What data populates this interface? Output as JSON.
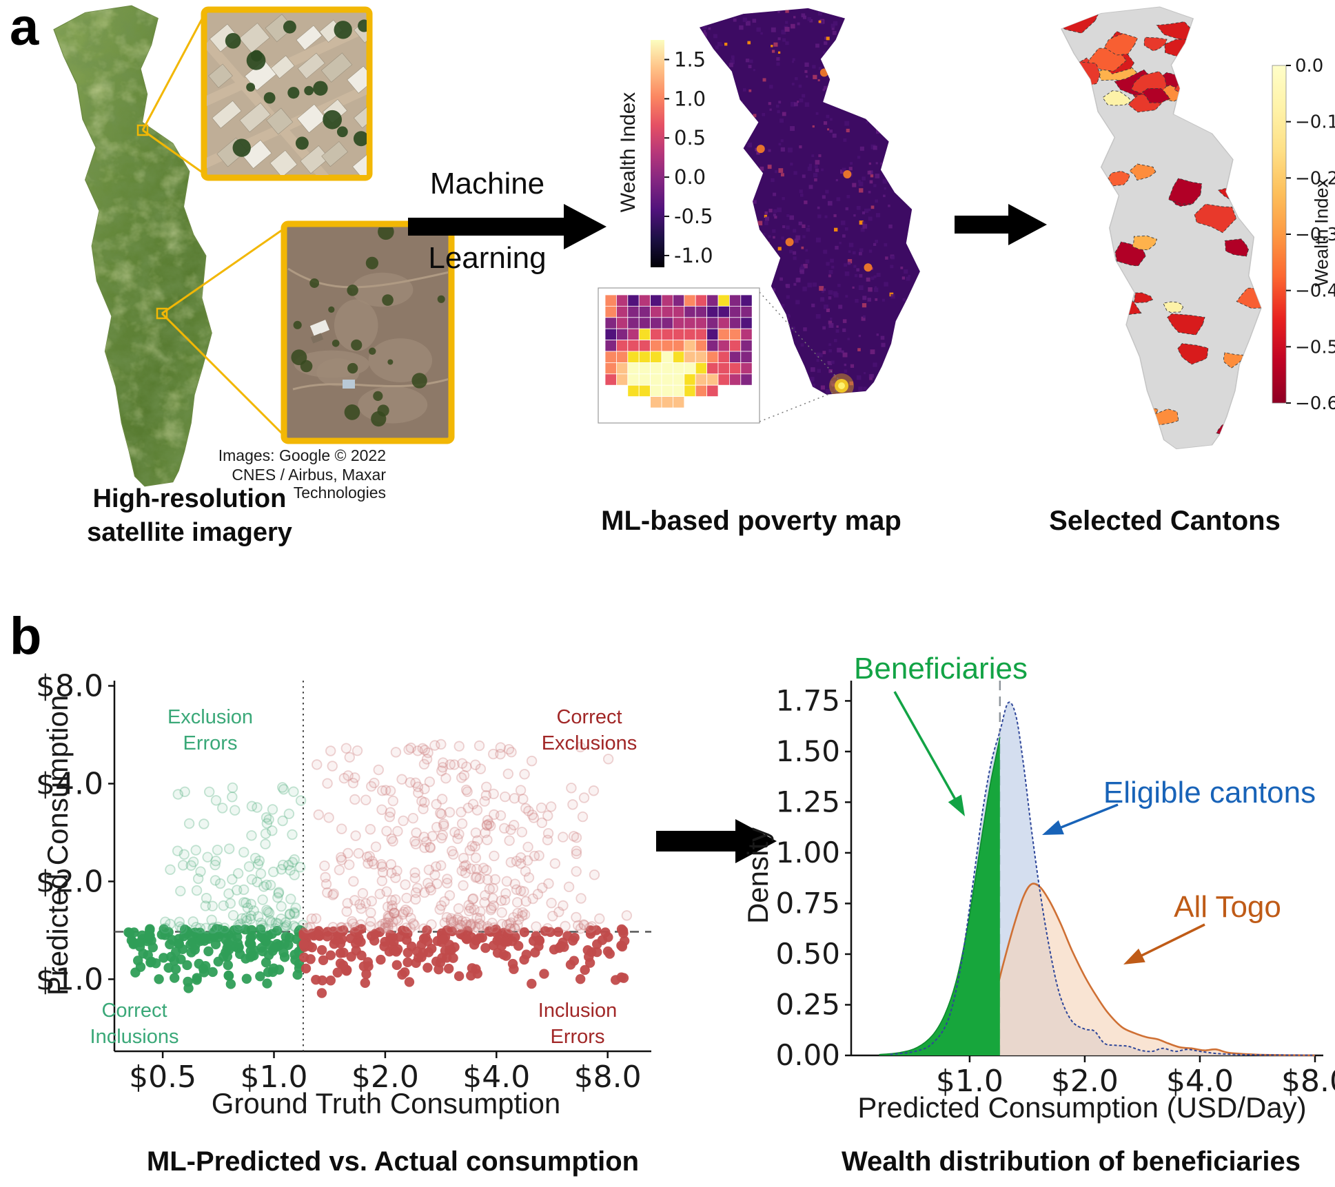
{
  "figure": {
    "panel_a_label": "a",
    "panel_b_label": "b",
    "colors": {
      "inset_border_yellow": "#f2b705",
      "arrow_black": "#000000",
      "scatter_green": "#2f9e57",
      "scatter_red": "#c14b4b",
      "annotation_blue": "#1863b8",
      "annotation_orange": "#bf5b17",
      "annotation_green": "#12a345"
    },
    "satellite": {
      "caption": "High-resolution\nsatellite imagery",
      "credit1": "Images: Google © 2022",
      "credit2": "CNES / Airbus, Maxar Technologies"
    },
    "ml_arrow": {
      "top": "Machine",
      "bottom": "Learning"
    },
    "poverty": {
      "caption": "ML-based poverty map",
      "colorbar_label": "Wealth Index",
      "colorbar_ticks": [
        1.5,
        1.0,
        0.5,
        0.0,
        -0.5,
        -1.0
      ],
      "colorbar_range": [
        1.75,
        -1.15
      ],
      "colorbar_stops": [
        "#000004",
        "#1c1044",
        "#4f127b",
        "#812581",
        "#b5367a",
        "#e55064",
        "#fb8761",
        "#fec287",
        "#fcfdbf"
      ],
      "map_base": "#3d0b63",
      "heat_palette": [
        "#1d1147",
        "#51127c",
        "#822681",
        "#b63679",
        "#e65164",
        "#fb8861",
        "#fec287",
        "#f8df25",
        "#fcfdbf"
      ]
    },
    "cantons": {
      "caption": "Selected Cantons",
      "colorbar_label": "Wealth Index",
      "colorbar_ticks": [
        0.0,
        -0.1,
        -0.2,
        -0.3,
        -0.4,
        -0.5,
        -0.6
      ],
      "colorbar_stops": [
        "#fffec9",
        "#fff3a9",
        "#fee087",
        "#fdc05c",
        "#fd9a43",
        "#fc6731",
        "#e8221f",
        "#c00324",
        "#8e0024"
      ],
      "map_base": "#d9d9d9",
      "canton_palette": [
        "#b10026",
        "#d81b1c",
        "#e8392b",
        "#f85f32",
        "#fd8d3c",
        "#feb24c",
        "#fdf2a8"
      ]
    }
  },
  "chart_data": [
    {
      "type": "scatter",
      "title": "ML-Predicted vs. Actual consumption",
      "xlabel": "Ground Truth Consumption",
      "ylabel": "Predicted Consumption",
      "x_scale": "log2",
      "y_scale": "log2",
      "x_ticks": {
        "labels": [
          "$0.5",
          "$1.0",
          "$2.0",
          "$4.0",
          "$8.0"
        ],
        "values": [
          0.5,
          1,
          2,
          4,
          8
        ]
      },
      "y_ticks": {
        "labels": [
          "$1.0",
          "$2.0",
          "$4.0",
          "$8.0"
        ],
        "values": [
          1,
          2,
          4,
          8
        ]
      },
      "xlim": [
        0.37,
        10.5
      ],
      "ylim": [
        0.6,
        8.3
      ],
      "thresholds": {
        "x_dotted": 1.2,
        "y_dashed": 1.4
      },
      "quadrant_labels": [
        {
          "text": "Exclusion\nErrors",
          "color": "#3aa878",
          "position": "top-left"
        },
        {
          "text": "Correct\nExclusions",
          "color": "#a12727",
          "position": "top-right"
        },
        {
          "text": "Correct\nInclusions",
          "color": "#3aa878",
          "position": "bottom-left"
        },
        {
          "text": "Inclusion\nErrors",
          "color": "#a12727",
          "position": "bottom-right"
        }
      ],
      "series": [
        {
          "name": "Correct Inclusions",
          "marker": "solid-dot",
          "color": "#2f9e57",
          "n": 175,
          "x_range": [
            0.4,
            1.2
          ],
          "y_range": [
            0.88,
            1.43
          ]
        },
        {
          "name": "Inclusion Errors",
          "marker": "solid-dot",
          "color": "#c14b4b",
          "n": 215,
          "x_range": [
            1.2,
            9.0
          ],
          "y_range": [
            0.88,
            1.43
          ]
        },
        {
          "name": "Exclusion Errors",
          "marker": "faint-open",
          "color": "#58b383",
          "n": 135,
          "x_range": [
            0.5,
            1.2
          ],
          "y_range": [
            1.43,
            3.9
          ]
        },
        {
          "name": "Correct Exclusions",
          "marker": "faint-open",
          "color": "#cf8080",
          "n": 390,
          "x_range": [
            1.2,
            9.5
          ],
          "y_range": [
            1.43,
            5.3
          ]
        }
      ]
    },
    {
      "type": "area",
      "title": "Wealth distribution of beneficiaries",
      "xlabel": "Predicted Consumption (USD/Day)",
      "ylabel": "Density",
      "x_scale": "log2",
      "x_ticks": {
        "labels": [
          "$1.0",
          "$2.0",
          "$4.0",
          "$8.0"
        ],
        "values": [
          1,
          2,
          4,
          8
        ]
      },
      "y_ticks": [
        0,
        0.25,
        0.5,
        0.75,
        1.0,
        1.25,
        1.5,
        1.75
      ],
      "xlim": [
        0.49,
        8.0
      ],
      "ylim": [
        0,
        1.85
      ],
      "threshold_x": 1.2,
      "annotations": [
        {
          "text": "Beneficiaries",
          "color": "#12a345"
        },
        {
          "text": "Eligible cantons",
          "color": "#1863b8"
        },
        {
          "text": "All Togo",
          "color": "#bf5b17"
        }
      ],
      "series": [
        {
          "name": "Beneficiaries",
          "line_color": "#0c8a2e",
          "fill_color": "#17a63c",
          "fill_opacity": 1,
          "points": [
            [
              0.58,
              0.004
            ],
            [
              0.66,
              0.015
            ],
            [
              0.73,
              0.04
            ],
            [
              0.8,
              0.1
            ],
            [
              0.86,
              0.2
            ],
            [
              0.92,
              0.36
            ],
            [
              0.98,
              0.6
            ],
            [
              1.03,
              0.85
            ],
            [
              1.08,
              1.1
            ],
            [
              1.13,
              1.33
            ],
            [
              1.17,
              1.47
            ],
            [
              1.2,
              1.57
            ]
          ]
        },
        {
          "name": "Eligible cantons",
          "line_color": "#2e4699",
          "line_dash": "4 3",
          "fill_color": "#cdd8ec",
          "fill_opacity": 0.85,
          "points": [
            [
              0.62,
              0.005
            ],
            [
              0.72,
              0.02
            ],
            [
              0.8,
              0.06
            ],
            [
              0.88,
              0.18
            ],
            [
              0.95,
              0.45
            ],
            [
              1.02,
              0.85
            ],
            [
              1.08,
              1.2
            ],
            [
              1.14,
              1.45
            ],
            [
              1.2,
              1.6
            ],
            [
              1.26,
              1.74
            ],
            [
              1.32,
              1.68
            ],
            [
              1.38,
              1.45
            ],
            [
              1.45,
              1.12
            ],
            [
              1.53,
              0.8
            ],
            [
              1.62,
              0.52
            ],
            [
              1.72,
              0.3
            ],
            [
              1.85,
              0.17
            ],
            [
              2.0,
              0.13
            ],
            [
              2.12,
              0.12
            ],
            [
              2.25,
              0.06
            ],
            [
              2.4,
              0.05
            ],
            [
              2.6,
              0.045
            ],
            [
              2.8,
              0.025
            ],
            [
              3.0,
              0.02
            ],
            [
              3.2,
              0.035
            ],
            [
              3.45,
              0.02
            ],
            [
              3.7,
              0.03
            ],
            [
              4.0,
              0.02
            ],
            [
              4.4,
              0.01
            ],
            [
              4.9,
              0.005
            ],
            [
              5.5,
              0.003
            ],
            [
              6.5,
              0.002
            ],
            [
              8.0,
              0.001
            ]
          ]
        },
        {
          "name": "All Togo",
          "line_color": "#cf7034",
          "fill_color": "#f6d3b8",
          "fill_opacity": 0.62,
          "points": [
            [
              0.92,
              0.004
            ],
            [
              1.0,
              0.02
            ],
            [
              1.08,
              0.08
            ],
            [
              1.15,
              0.25
            ],
            [
              1.22,
              0.44
            ],
            [
              1.3,
              0.63
            ],
            [
              1.38,
              0.78
            ],
            [
              1.45,
              0.845
            ],
            [
              1.53,
              0.83
            ],
            [
              1.62,
              0.76
            ],
            [
              1.73,
              0.65
            ],
            [
              1.85,
              0.52
            ],
            [
              2.0,
              0.39
            ],
            [
              2.15,
              0.29
            ],
            [
              2.3,
              0.21
            ],
            [
              2.5,
              0.14
            ],
            [
              2.7,
              0.11
            ],
            [
              2.9,
              0.09
            ],
            [
              3.1,
              0.08
            ],
            [
              3.3,
              0.06
            ],
            [
              3.55,
              0.04
            ],
            [
              3.8,
              0.035
            ],
            [
              4.1,
              0.025
            ],
            [
              4.4,
              0.03
            ],
            [
              4.7,
              0.015
            ],
            [
              5.1,
              0.008
            ],
            [
              5.6,
              0.004
            ],
            [
              6.3,
              0.002
            ],
            [
              7.2,
              0.001
            ],
            [
              8.0,
              0.0005
            ]
          ]
        }
      ]
    }
  ]
}
